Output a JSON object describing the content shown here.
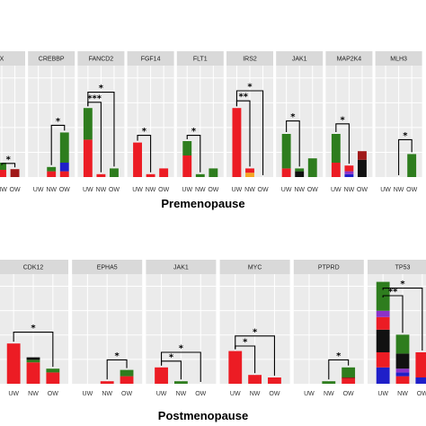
{
  "colors": {
    "red": "#ec1c24",
    "green": "#2e7d1e",
    "blue": "#1f1fc9",
    "black": "#111111",
    "purple": "#8b32c8",
    "orange": "#f5a623",
    "darkred": "#a01818"
  },
  "chart_data": [
    {
      "type": "bar",
      "title": "Premenopause",
      "stacked": true,
      "categories": [
        "UW",
        "NW",
        "OW"
      ],
      "panels": [
        {
          "gene": "X",
          "bars": [
            null,
            [
              {
                "c": "red",
                "v": 0.5
              },
              {
                "c": "green",
                "v": 0.5
              }
            ],
            [
              {
                "c": "darkred",
                "v": 0.55
              }
            ]
          ],
          "sig": [
            {
              "a": 1,
              "b": 2,
              "label": "*",
              "level": 0.95
            }
          ]
        },
        {
          "gene": "CREBBP",
          "bars": [
            [],
            [
              {
                "c": "red",
                "v": 0.4
              },
              {
                "c": "green",
                "v": 0.3
              }
            ],
            [
              {
                "c": "red",
                "v": 0.4
              },
              {
                "c": "blue",
                "v": 0.6
              },
              {
                "c": "green",
                "v": 2.1
              }
            ]
          ],
          "sig": [
            {
              "a": 1,
              "b": 2,
              "label": "*",
              "level": 3.6
            }
          ]
        },
        {
          "gene": "FANCD2",
          "bars": [
            [
              {
                "c": "red",
                "v": 2.6
              },
              {
                "c": "green",
                "v": 2.2
              }
            ],
            [
              {
                "c": "red",
                "v": 0.2
              }
            ],
            [
              {
                "c": "green",
                "v": 0.6
              }
            ]
          ],
          "sig": [
            {
              "a": 0,
              "b": 2,
              "label": "*",
              "level": 5.9
            },
            {
              "a": 0,
              "b": 1,
              "label": "***",
              "level": 5.2
            }
          ]
        },
        {
          "gene": "FGF14",
          "bars": [
            [
              {
                "c": "red",
                "v": 2.4
              }
            ],
            [
              {
                "c": "red",
                "v": 0.2
              }
            ],
            [
              {
                "c": "red",
                "v": 0.6
              }
            ]
          ],
          "sig": [
            {
              "a": 0,
              "b": 1,
              "label": "*",
              "level": 2.9
            }
          ]
        },
        {
          "gene": "FLT1",
          "bars": [
            [
              {
                "c": "red",
                "v": 1.5
              },
              {
                "c": "green",
                "v": 1.0
              }
            ],
            [
              {
                "c": "green",
                "v": 0.2
              }
            ],
            [
              {
                "c": "green",
                "v": 0.6
              }
            ]
          ],
          "sig": [
            {
              "a": 0,
              "b": 1,
              "label": "*",
              "level": 2.9
            }
          ]
        },
        {
          "gene": "IRS2",
          "bars": [
            [
              {
                "c": "red",
                "v": 4.8
              }
            ],
            [
              {
                "c": "orange",
                "v": 0.3
              },
              {
                "c": "red",
                "v": 0.3
              }
            ],
            null
          ],
          "sig": [
            {
              "a": 0,
              "b": 2,
              "label": "*",
              "level": 6.0
            },
            {
              "a": 0,
              "b": 1,
              "label": "**",
              "level": 5.3
            }
          ]
        },
        {
          "gene": "JAK1",
          "bars": [
            [
              {
                "c": "red",
                "v": 0.6
              },
              {
                "c": "green",
                "v": 2.4
              }
            ],
            [
              {
                "c": "black",
                "v": 0.4
              },
              {
                "c": "green",
                "v": 0.2
              }
            ],
            [
              {
                "c": "green",
                "v": 1.3
              }
            ]
          ],
          "sig": [
            {
              "a": 0,
              "b": 1,
              "label": "*",
              "level": 3.9
            }
          ]
        },
        {
          "gene": "MAP2K4",
          "bars": [
            [
              {
                "c": "red",
                "v": 1.0
              },
              {
                "c": "green",
                "v": 2.0
              }
            ],
            [
              {
                "c": "blue",
                "v": 0.2
              },
              {
                "c": "purple",
                "v": 0.2
              },
              {
                "c": "red",
                "v": 0.4
              }
            ],
            [
              {
                "c": "black",
                "v": 1.2
              },
              {
                "c": "darkred",
                "v": 0.6
              }
            ]
          ],
          "sig": [
            {
              "a": 0,
              "b": 1,
              "label": "*",
              "level": 3.7
            }
          ]
        },
        {
          "gene": "MLH3",
          "bars": [
            null,
            [],
            [
              {
                "c": "green",
                "v": 1.6
              }
            ]
          ],
          "sig": [
            {
              "a": 1,
              "b": 2,
              "label": "*",
              "level": 2.6
            }
          ]
        }
      ]
    },
    {
      "type": "bar",
      "title": "Postmenopause",
      "stacked": true,
      "categories": [
        "UW",
        "NW",
        "OW"
      ],
      "panels": [
        {
          "gene": "CDK12",
          "bars": [
            [
              {
                "c": "red",
                "v": 3.2
              }
            ],
            [
              {
                "c": "red",
                "v": 1.7
              },
              {
                "c": "green",
                "v": 0.2
              },
              {
                "c": "black",
                "v": 0.2
              }
            ],
            [
              {
                "c": "red",
                "v": 0.9
              },
              {
                "c": "green",
                "v": 0.3
              }
            ]
          ],
          "sig": [
            {
              "a": 0,
              "b": 2,
              "label": "*",
              "level": 4.1
            }
          ]
        },
        {
          "gene": "EPHA5",
          "bars": [
            null,
            [
              {
                "c": "red",
                "v": 0.2
              }
            ],
            [
              {
                "c": "red",
                "v": 0.6
              },
              {
                "c": "green",
                "v": 0.5
              }
            ]
          ],
          "sig": [
            {
              "a": 1,
              "b": 2,
              "label": "*",
              "level": 1.9
            }
          ]
        },
        {
          "gene": "JAK1",
          "bars": [
            [
              {
                "c": "red",
                "v": 1.3
              }
            ],
            [
              {
                "c": "green",
                "v": 0.2
              }
            ],
            null
          ],
          "sig": [
            {
              "a": 0,
              "b": 2,
              "label": "*",
              "level": 2.5
            },
            {
              "a": 0,
              "b": 1,
              "label": "*",
              "level": 1.8
            }
          ]
        },
        {
          "gene": "MYC",
          "bars": [
            [
              {
                "c": "red",
                "v": 2.6
              }
            ],
            [
              {
                "c": "red",
                "v": 0.7
              }
            ],
            [
              {
                "c": "red",
                "v": 0.5
              }
            ]
          ],
          "sig": [
            {
              "a": 0,
              "b": 2,
              "label": "*",
              "level": 3.8
            },
            {
              "a": 0,
              "b": 1,
              "label": "*",
              "level": 3.0
            }
          ]
        },
        {
          "gene": "PTPRD",
          "bars": [
            null,
            [
              {
                "c": "green",
                "v": 0.2
              }
            ],
            [
              {
                "c": "red",
                "v": 0.4
              },
              {
                "c": "darkred",
                "v": 0.1
              },
              {
                "c": "green",
                "v": 0.8
              }
            ]
          ],
          "sig": [
            {
              "a": 1,
              "b": 2,
              "label": "*",
              "level": 1.9
            }
          ]
        },
        {
          "gene": "TP53",
          "bars": [
            [
              {
                "c": "blue",
                "v": 1.3
              },
              {
                "c": "red",
                "v": 1.2
              },
              {
                "c": "black",
                "v": 1.8
              },
              {
                "c": "red",
                "v": 1.0
              },
              {
                "c": "purple",
                "v": 0.5
              },
              {
                "c": "green",
                "v": 2.3
              }
            ],
            [
              {
                "c": "red",
                "v": 0.6
              },
              {
                "c": "blue",
                "v": 0.3
              },
              {
                "c": "purple",
                "v": 0.3
              },
              {
                "c": "black",
                "v": 1.2
              },
              {
                "c": "green",
                "v": 1.5
              }
            ],
            [
              {
                "c": "blue",
                "v": 0.5
              },
              {
                "c": "red",
                "v": 2.0
              }
            ]
          ],
          "sig": [
            {
              "a": 0,
              "b": 1,
              "label": "**",
              "level": 7.0
            },
            {
              "a": 0,
              "b": 2,
              "label": "*",
              "level": 7.6
            }
          ]
        }
      ]
    }
  ]
}
